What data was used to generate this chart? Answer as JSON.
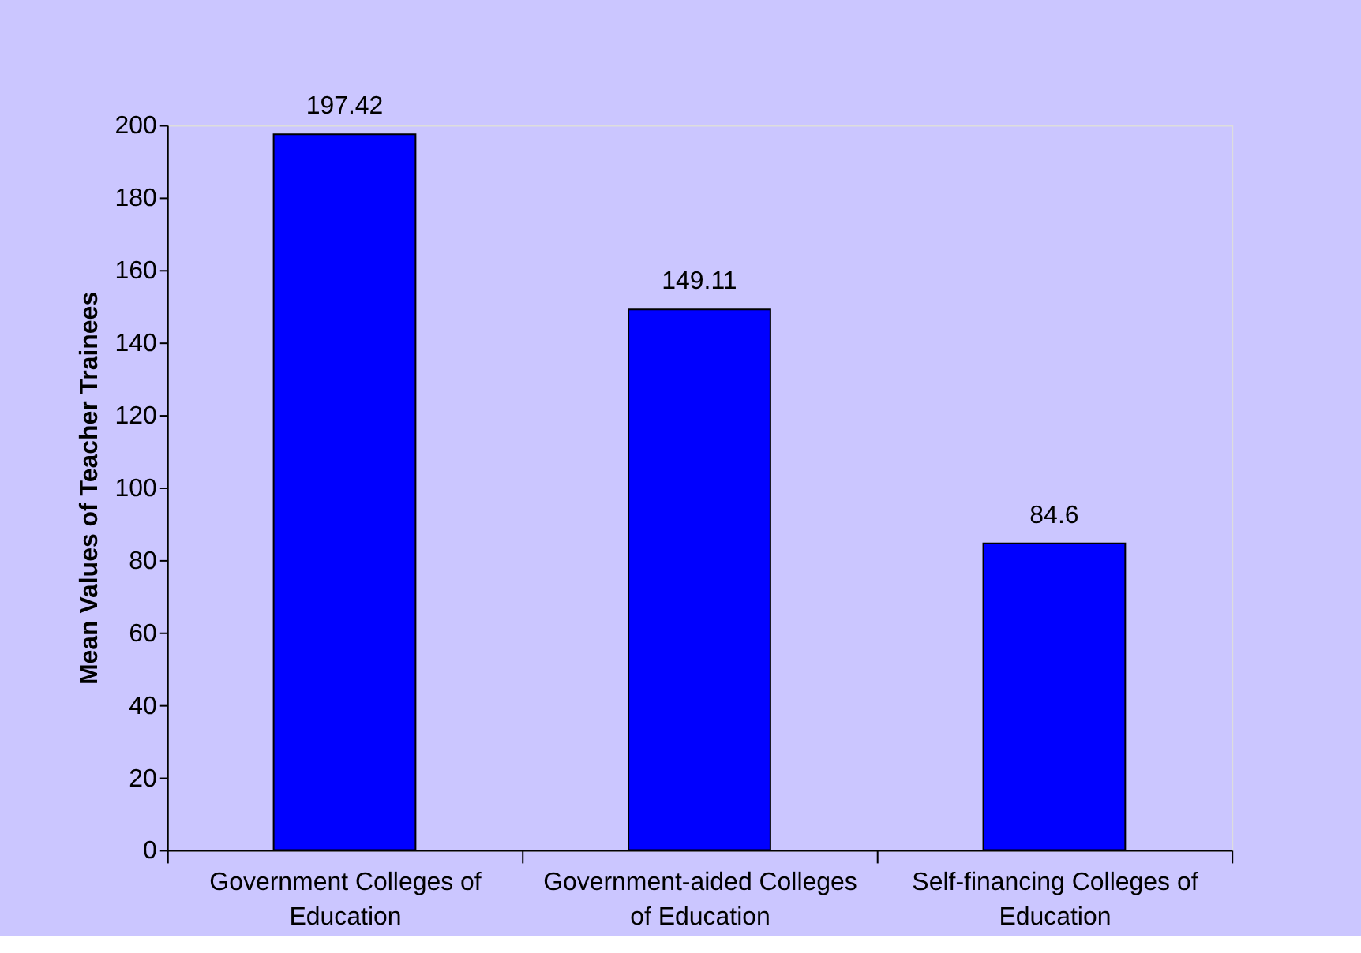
{
  "chart_data": {
    "type": "bar",
    "ylabel": "Mean Values of Teacher Trainees",
    "categories": [
      "Government Colleges of Education",
      "Government-aided Colleges of Education",
      "Self-financing Colleges of Education"
    ],
    "values": [
      197.42,
      149.11,
      84.6
    ],
    "color": "#0000ff",
    "ylim": [
      0,
      200
    ],
    "yticks": [
      0,
      20,
      40,
      60,
      80,
      100,
      120,
      140,
      160,
      180,
      200
    ],
    "grid": false,
    "data_labels": true
  }
}
